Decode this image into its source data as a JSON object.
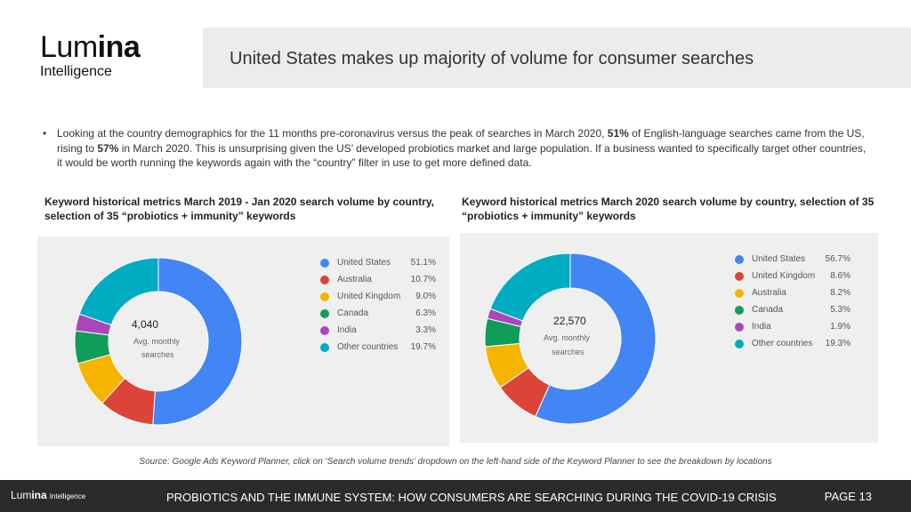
{
  "logo": {
    "light": "Lum",
    "bold": "ina",
    "sub": "Intelligence"
  },
  "header": {
    "title": "United States makes up majority of volume for consumer searches"
  },
  "bullet": {
    "marker": "•",
    "p1": "Looking at the country demographics for the 11 months pre-coronavirus versus the peak of searches in March 2020, ",
    "b1": "51%",
    "p2": " of English-language searches came from the US, rising to ",
    "b2": "57%",
    "p3": " in March 2020. This is unsurprising given the US’ developed probiotics market and large population. If a business wanted to specifically target other countries, it would be worth running the keywords again with the “country” filter in use to get more defined data."
  },
  "chart_data": [
    {
      "type": "pie",
      "title": "Keyword historical metrics March 2019 - Jan 2020 search volume by country, selection of 35 “probiotics + immunity” keywords",
      "center_value": "4,040",
      "center_label_1": "Avg. monthly",
      "center_label_2": "searches",
      "legend_position": "right",
      "slices": [
        {
          "label": "United States",
          "value": 51.1,
          "display": "51.1%",
          "color": "#4285f4"
        },
        {
          "label": "Australia",
          "value": 10.7,
          "display": "10.7%",
          "color": "#db4437"
        },
        {
          "label": "United Kingdom",
          "value": 9.0,
          "display": "9.0%",
          "color": "#f4b400"
        },
        {
          "label": "Canada",
          "value": 6.3,
          "display": "6.3%",
          "color": "#0f9d58"
        },
        {
          "label": "India",
          "value": 3.3,
          "display": "3.3%",
          "color": "#ab47bc"
        },
        {
          "label": "Other countries",
          "value": 19.7,
          "display": "19.7%",
          "color": "#00acc1"
        }
      ]
    },
    {
      "type": "pie",
      "title": "Keyword historical metrics March 2020 search volume by country, selection of 35 “probiotics + immunity” keywords",
      "center_value": "22,570",
      "center_label_1": "Avg. monthly",
      "center_label_2": "searches",
      "legend_position": "right",
      "slices": [
        {
          "label": "United States",
          "value": 56.7,
          "display": "56.7%",
          "color": "#4285f4"
        },
        {
          "label": "United Kingdom",
          "value": 8.6,
          "display": "8.6%",
          "color": "#db4437"
        },
        {
          "label": "Australia",
          "value": 8.2,
          "display": "8.2%",
          "color": "#f4b400"
        },
        {
          "label": "Canada",
          "value": 5.3,
          "display": "5.3%",
          "color": "#0f9d58"
        },
        {
          "label": "India",
          "value": 1.9,
          "display": "1.9%",
          "color": "#ab47bc"
        },
        {
          "label": "Other countries",
          "value": 19.3,
          "display": "19.3%",
          "color": "#00acc1"
        }
      ]
    }
  ],
  "source": "Source: Google Ads Keyword Planner, click on ‘Search volume trends’ dropdown on the left-hand side of the Keyword Planner to see the breakdown by locations",
  "footer": {
    "logo_light": "Lum",
    "logo_bold": "ina",
    "logo_sub": "Intelligence",
    "title": "PROBIOTICS AND THE IMMUNE SYSTEM: HOW CONSUMERS ARE SEARCHING DURING THE COVID-19 CRISIS",
    "page": "PAGE 13"
  }
}
